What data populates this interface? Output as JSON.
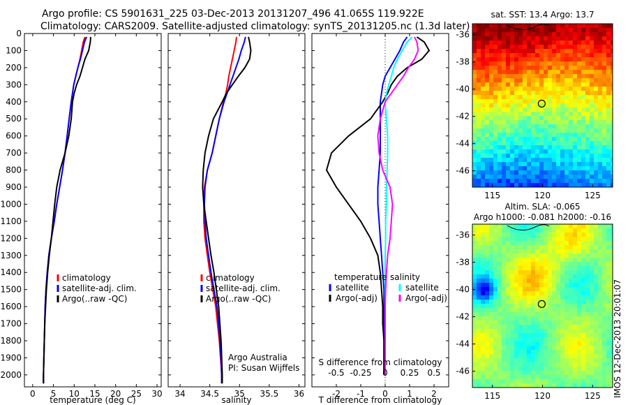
{
  "title_line1": "Argo profile: CS 5901631_225 03-Dec-2013 20131207_496 41.065S 119.922E",
  "title_line2": "Climatology: CARS2009. Satellite-adjusted climatology: synTS_20131205.nc (1.3d later)",
  "stamp": "IMOS 12-Dec-2013 20:01:07",
  "colors": {
    "climatology": "#ff0000",
    "satellite": "#0000ff",
    "argo": "#000000",
    "salinity_sat": "#00ffff",
    "salinity_argo": "#ff00ff"
  },
  "chart_data": [
    {
      "type": "line",
      "name": "temperature-profile",
      "xlabel": "temperature (deg C)",
      "ylabel": "",
      "xlim": [
        -2,
        31
      ],
      "ylim": [
        2070,
        0
      ],
      "xticks": [
        0,
        5,
        10,
        15,
        20,
        25,
        30
      ],
      "yticks": [
        0,
        100,
        200,
        300,
        400,
        500,
        600,
        700,
        800,
        900,
        1000,
        1100,
        1200,
        1300,
        1400,
        1500,
        1600,
        1700,
        1800,
        1900,
        2000
      ],
      "legend": [
        "climatology",
        "satellite-adj. clim.",
        "Argo(..raw -QC)"
      ],
      "series": [
        {
          "name": "climatology",
          "color": "#ff0000",
          "x": [
            12.6,
            12.2,
            11.8,
            11.4,
            10.9,
            10.4,
            9.9,
            9.6,
            9.3,
            8.8,
            8.3,
            7.8,
            7.2,
            6.5,
            5.8,
            5.2,
            4.5,
            3.9,
            3.5,
            3.2,
            3.0,
            2.9,
            2.8,
            2.7,
            2.6,
            2.6
          ],
          "y": [
            20,
            50,
            100,
            150,
            200,
            250,
            300,
            350,
            400,
            500,
            600,
            700,
            800,
            900,
            1000,
            1100,
            1200,
            1300,
            1400,
            1500,
            1600,
            1700,
            1800,
            1900,
            2000,
            2050
          ]
        },
        {
          "name": "satellite-adj. clim.",
          "color": "#0000ff",
          "x": [
            13.0,
            12.5,
            12.0,
            11.5,
            10.9,
            10.4,
            9.9,
            9.6,
            9.3,
            8.8,
            8.3,
            7.8,
            7.2,
            6.5,
            5.8,
            5.2,
            4.5,
            3.9,
            3.5,
            3.2,
            3.0,
            2.9,
            2.8,
            2.7,
            2.6,
            2.6
          ],
          "y": [
            20,
            50,
            100,
            150,
            200,
            250,
            300,
            350,
            400,
            500,
            600,
            700,
            800,
            900,
            1000,
            1100,
            1200,
            1300,
            1400,
            1500,
            1600,
            1700,
            1800,
            1900,
            2000,
            2050
          ]
        },
        {
          "name": "Argo(..raw -QC)",
          "color": "#000000",
          "x": [
            14.0,
            13.9,
            13.5,
            12.6,
            12.0,
            11.4,
            10.6,
            10.0,
            9.6,
            9.3,
            8.7,
            7.8,
            6.6,
            5.8,
            5.3,
            4.9,
            4.5,
            4.0,
            3.6,
            3.3,
            3.1,
            2.9,
            2.8,
            2.7,
            2.6,
            2.6
          ],
          "y": [
            20,
            50,
            100,
            150,
            200,
            250,
            300,
            350,
            400,
            500,
            600,
            700,
            800,
            900,
            1000,
            1100,
            1200,
            1300,
            1400,
            1500,
            1600,
            1700,
            1800,
            1900,
            2000,
            2050
          ]
        }
      ]
    },
    {
      "type": "line",
      "name": "salinity-profile",
      "xlabel": "salinity",
      "ylabel": "",
      "xlim": [
        33.8,
        36.1
      ],
      "ylim": [
        2070,
        0
      ],
      "xticks": [
        34,
        34.5,
        35,
        35.5,
        36
      ],
      "xtick_labels": [
        "34",
        "34.5",
        "35",
        "35.5",
        "36"
      ],
      "legend": [
        "climatology",
        "satellite-adj. clim.",
        "Argo(..raw -QC)"
      ],
      "annotation": [
        "Argo Australia",
        "PI: Susan Wijffels"
      ],
      "series": [
        {
          "name": "climatology",
          "color": "#ff0000",
          "x": [
            34.95,
            34.94,
            34.91,
            34.88,
            34.85,
            34.82,
            34.8,
            34.77,
            34.73,
            34.66,
            34.6,
            34.54,
            34.46,
            34.41,
            34.4,
            34.4,
            34.42,
            34.46,
            34.5,
            34.55,
            34.6,
            34.63,
            34.66,
            34.68,
            34.7,
            34.7
          ],
          "y": [
            20,
            50,
            100,
            150,
            200,
            250,
            300,
            350,
            400,
            500,
            600,
            700,
            800,
            900,
            1000,
            1100,
            1200,
            1300,
            1400,
            1500,
            1600,
            1700,
            1800,
            1900,
            2000,
            2050
          ]
        },
        {
          "name": "satellite-adj. clim.",
          "color": "#0000ff",
          "x": [
            35.1,
            35.08,
            35.03,
            34.99,
            34.94,
            34.89,
            34.84,
            34.79,
            34.74,
            34.66,
            34.6,
            34.54,
            34.46,
            34.42,
            34.41,
            34.42,
            34.44,
            34.48,
            34.52,
            34.57,
            34.62,
            34.65,
            34.67,
            34.69,
            34.7,
            34.7
          ],
          "y": [
            20,
            50,
            100,
            150,
            200,
            250,
            300,
            350,
            400,
            500,
            600,
            700,
            800,
            900,
            1000,
            1100,
            1200,
            1300,
            1400,
            1500,
            1600,
            1700,
            1800,
            1900,
            2000,
            2050
          ]
        },
        {
          "name": "Argo(..raw -QC)",
          "color": "#000000",
          "x": [
            35.15,
            35.17,
            35.19,
            35.17,
            35.09,
            34.98,
            34.88,
            34.78,
            34.71,
            34.56,
            34.48,
            34.42,
            34.39,
            34.38,
            34.4,
            34.44,
            34.48,
            34.52,
            34.57,
            34.61,
            34.65,
            34.67,
            34.69,
            34.7,
            34.71,
            34.71
          ],
          "y": [
            20,
            50,
            100,
            150,
            200,
            250,
            300,
            350,
            400,
            500,
            600,
            700,
            800,
            900,
            1000,
            1100,
            1200,
            1300,
            1400,
            1500,
            1600,
            1700,
            1800,
            1900,
            2000,
            2050
          ]
        }
      ]
    },
    {
      "type": "line",
      "name": "difference-from-climatology",
      "xlabel": "T difference from climatology",
      "xlabel_top": "S difference from climatology",
      "xlim": [
        -3.0,
        2.6
      ],
      "ylim": [
        2070,
        0
      ],
      "xticks": [
        -2,
        -1,
        0,
        1,
        2
      ],
      "xtick_labels": [
        "-2",
        "-1",
        "0",
        "1",
        "2"
      ],
      "s_tick_labels": [
        "-0.5",
        "-0.25",
        "0",
        "0.25",
        "0.5"
      ],
      "legend_temperature_title": "temperature",
      "legend_salinity_title": "salinity",
      "legend": [
        "satellite",
        "Argo(-adj)",
        "satellite",
        "Argo(-adj)"
      ],
      "series": [
        {
          "name": "satellite",
          "color": "#0000ff",
          "x": [
            0.9,
            0.75,
            0.6,
            0.4,
            0.2,
            0.0,
            -0.1,
            -0.15,
            -0.2,
            -0.2,
            -0.2,
            -0.2,
            -0.25,
            -0.3,
            -0.3,
            -0.25,
            -0.2,
            -0.15,
            -0.1,
            -0.05,
            -0.05,
            -0.05,
            -0.05,
            -0.05,
            -0.05
          ],
          "y": [
            20,
            50,
            100,
            150,
            200,
            250,
            300,
            350,
            400,
            500,
            600,
            700,
            800,
            900,
            1000,
            1100,
            1200,
            1300,
            1400,
            1500,
            1600,
            1700,
            1800,
            1900,
            2000
          ]
        },
        {
          "name": "Argo(-adj)",
          "color": "#000000",
          "x": [
            1.3,
            1.6,
            1.8,
            1.5,
            0.9,
            0.5,
            0.25,
            0.1,
            -0.1,
            -0.6,
            -1.5,
            -2.2,
            -2.4,
            -2.0,
            -1.5,
            -1.0,
            -0.6,
            -0.3,
            -0.2,
            -0.15,
            -0.1,
            -0.1,
            -0.05,
            -0.05,
            -0.05
          ],
          "y": [
            20,
            50,
            100,
            150,
            200,
            250,
            300,
            350,
            400,
            500,
            600,
            700,
            800,
            900,
            1000,
            1100,
            1200,
            1300,
            1400,
            1500,
            1600,
            1700,
            1800,
            1900,
            2000
          ]
        },
        {
          "name": "satellite",
          "color": "#00ffff",
          "x": [
            1.1,
            0.9,
            0.7,
            0.5,
            0.35,
            0.25,
            0.15,
            0.05,
            0.0,
            0.05,
            0.1,
            0.1,
            0.08,
            0.05,
            0.05,
            0.02,
            0.02,
            0.0,
            0.0,
            0.0,
            0.0,
            0.0,
            0.0,
            0.0,
            0.0
          ],
          "y": [
            20,
            50,
            100,
            150,
            200,
            250,
            300,
            350,
            400,
            500,
            600,
            700,
            800,
            900,
            1000,
            1100,
            1200,
            1300,
            1400,
            1500,
            1600,
            1700,
            1800,
            1900,
            2000
          ]
        },
        {
          "name": "Argo(-adj)",
          "color": "#ff00ff",
          "x": [
            1.2,
            1.3,
            1.35,
            1.2,
            0.95,
            0.75,
            0.5,
            0.25,
            0.0,
            -0.2,
            -0.3,
            -0.25,
            -0.1,
            0.2,
            0.3,
            0.25,
            0.2,
            0.1,
            0.05,
            0.02,
            0.0,
            0.0,
            0.0,
            0.0,
            0.0
          ],
          "y": [
            20,
            50,
            100,
            150,
            200,
            250,
            300,
            350,
            400,
            500,
            600,
            700,
            800,
            900,
            1000,
            1100,
            1200,
            1300,
            1400,
            1500,
            1600,
            1700,
            1800,
            1900,
            2000
          ]
        }
      ]
    },
    {
      "type": "heatmap",
      "name": "sst-map",
      "title": "sat. SST: 13.4  Argo: 13.7",
      "xlim": [
        113,
        127
      ],
      "ylim": [
        -47.2,
        -35.2
      ],
      "xticks": [
        115,
        120,
        125
      ],
      "yticks": [
        -36,
        -38,
        -40,
        -42,
        -44,
        -46
      ],
      "marker": {
        "lon": 119.922,
        "lat": -41.065
      }
    },
    {
      "type": "heatmap",
      "name": "sla-map",
      "title_line1": "Altim. SLA: -0.065",
      "title_line2": "Argo h1000: -0.081 h2000: -0.16",
      "xlim": [
        113,
        127
      ],
      "ylim": [
        -47.2,
        -35.2
      ],
      "xticks": [
        115,
        120,
        125
      ],
      "yticks": [
        -36,
        -38,
        -40,
        -42,
        -44,
        -46
      ],
      "marker": {
        "lon": 119.922,
        "lat": -41.065
      }
    }
  ]
}
